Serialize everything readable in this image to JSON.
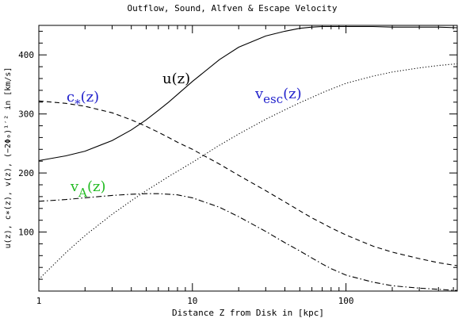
{
  "chart_data": {
    "type": "line",
    "title": "Outflow, Sound, Alfven & Escape Velocity",
    "xlabel": "Distance Z from Disk in [kpc]",
    "ylabel": "u(z), c∗(z), v(z), (−2Φ₀)¹′² in  [km/s]",
    "x_scale": "log",
    "xlim": [
      1,
      530
    ],
    "ylim": [
      0,
      450
    ],
    "x_ticks": [
      1,
      10,
      100
    ],
    "x_tick_labels": [
      "1",
      "10",
      "100"
    ],
    "y_ticks": [
      100,
      200,
      300,
      400
    ],
    "y_tick_labels": [
      "100",
      "200",
      "300",
      "400"
    ],
    "grid": false,
    "legend": "none",
    "x": [
      1,
      1.5,
      2,
      3,
      4,
      5,
      6,
      7,
      8,
      10,
      15,
      20,
      30,
      40,
      50,
      60,
      70,
      80,
      100,
      150,
      200,
      300,
      400,
      530
    ],
    "series": [
      {
        "name": "u(z)",
        "color": "#000000",
        "dash": "solid",
        "label_color": "#000000",
        "values": [
          221,
          229,
          237,
          255,
          273,
          290,
          306,
          320,
          333,
          355,
          392,
          413,
          432,
          440,
          445,
          447,
          448,
          448,
          448,
          448,
          447,
          447,
          447,
          446
        ]
      },
      {
        "name": "v_esc(z)",
        "color": "#000000",
        "dash": "dotted",
        "label_color": "#2222cc",
        "values": [
          20,
          65,
          94,
          130,
          153,
          170,
          183,
          194,
          203,
          218,
          247,
          266,
          291,
          307,
          319,
          328,
          336,
          342,
          352,
          364,
          371,
          378,
          382,
          385
        ]
      },
      {
        "name": "c_*(z)",
        "color": "#000000",
        "dash": "dashed",
        "label_color": "#2222cc",
        "values": [
          322,
          318,
          313,
          302,
          290,
          279,
          269,
          260,
          252,
          240,
          215,
          196,
          170,
          151,
          136,
          124,
          115,
          107,
          95,
          76,
          66,
          55,
          48,
          43
        ]
      },
      {
        "name": "v_A(z)",
        "color": "#000000",
        "dash": "dashdot",
        "label_color": "#22bb22",
        "values": [
          152,
          155,
          158,
          162,
          164,
          165,
          165,
          164,
          163,
          158,
          142,
          126,
          101,
          82,
          68,
          56,
          46,
          38,
          27,
          15,
          9,
          5,
          3,
          1
        ]
      }
    ]
  }
}
